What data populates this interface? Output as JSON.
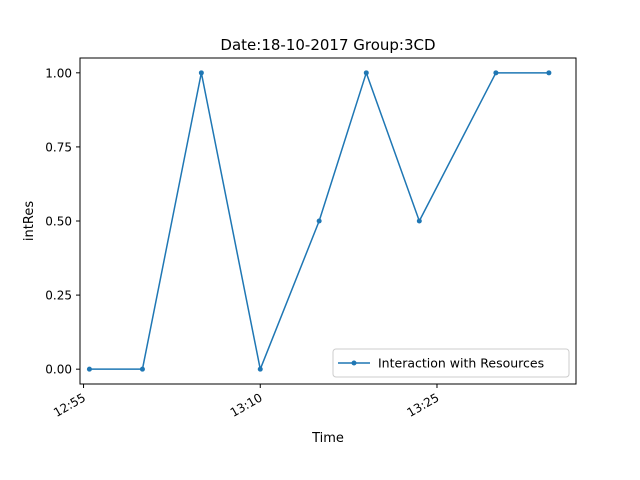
{
  "chart_data": {
    "type": "line",
    "title": "Date:18-10-2017  Group:3CD",
    "xlabel": "Time",
    "ylabel": "intRes",
    "x_ticks": [
      "12:55",
      "13:10",
      "13:25"
    ],
    "y_ticks": [
      "0.00",
      "0.25",
      "0.50",
      "0.75",
      "1.00"
    ],
    "xlim": [
      "12:54.7",
      "13:36.8"
    ],
    "ylim": [
      -0.05,
      1.05
    ],
    "grid": false,
    "legend_position": "lower-right",
    "series": [
      {
        "name": "Interaction with Resources",
        "color": "#1f77b4",
        "x": [
          "12:55.5",
          "13:00",
          "13:05",
          "13:10",
          "13:15",
          "13:19",
          "13:23.5",
          "13:30",
          "13:34.5"
        ],
        "y": [
          0.0,
          0.0,
          1.0,
          0.0,
          0.5,
          1.0,
          0.5,
          1.0,
          1.0
        ]
      }
    ]
  }
}
